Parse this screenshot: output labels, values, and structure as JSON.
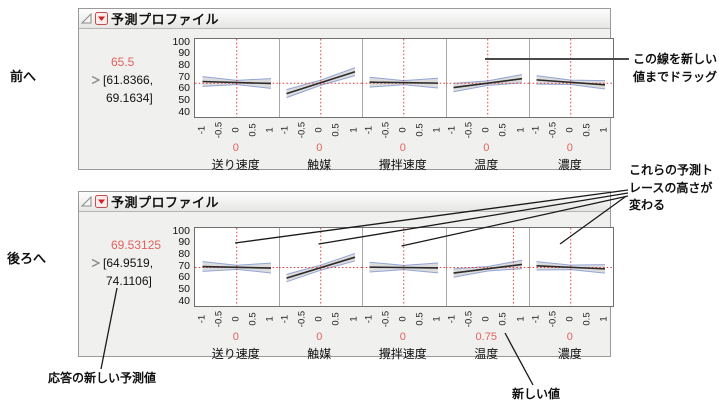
{
  "annotations": {
    "prev": "前へ",
    "next": "後ろへ",
    "drag_line1": "この線を新しい",
    "drag_line2": "値までドラッグ",
    "trace_line1": "これらの予測ト",
    "trace_line2": "レースの高さが",
    "trace_line3": "変わる",
    "new_prediction": "応答の新しい予測値",
    "new_value": "新しい値"
  },
  "colors": {
    "crosshair_red": "#e13b3b",
    "factor_value_red": "#e5615e",
    "band_fill": "#dcdcdc",
    "band_edge": "#93a5d6",
    "trace": "#2b2b2b",
    "panel_bg": "#f0f0ee"
  },
  "chart_data": [
    {
      "type": "line",
      "panel_title": "予測プロファイル",
      "response": {
        "value": 65.5,
        "value_label": "65.5",
        "ci_low": 61.8366,
        "ci_high": 69.1634,
        "ci_line1": "[61.8366,",
        "ci_line2": "69.1634]"
      },
      "ylim": [
        40,
        100
      ],
      "yticks": [
        "100",
        "90",
        "80",
        "70",
        "60",
        "50",
        "40"
      ],
      "xticks": [
        "-1",
        "-0.5",
        "0",
        "0.5",
        "1"
      ],
      "xtick_values": [
        -1,
        -0.5,
        0,
        0.5,
        1
      ],
      "factors": [
        {
          "name": "送り速度",
          "value": 0,
          "value_label": "0",
          "trace": [
            67.0,
            65.3
          ],
          "band_end": 4.2,
          "band_mid": 1.8
        },
        {
          "name": "触媒",
          "value": 0,
          "value_label": "0",
          "trace": [
            56.6,
            75.4
          ],
          "band_end": 3.4,
          "band_mid": 2.2
        },
        {
          "name": "攪拌速度",
          "value": 0,
          "value_label": "0",
          "trace": [
            66.4,
            65.6
          ],
          "band_end": 4.2,
          "band_mid": 1.8
        },
        {
          "name": "温度",
          "value": 0,
          "value_label": "0",
          "trace": [
            61.8,
            69.4
          ],
          "band_end": 3.6,
          "band_mid": 1.9
        },
        {
          "name": "濃度",
          "value": 0,
          "value_label": "0",
          "trace": [
            68.4,
            64.2
          ],
          "band_end": 3.6,
          "band_mid": 1.9
        }
      ]
    },
    {
      "type": "line",
      "panel_title": "予測プロファイル",
      "response": {
        "value": 69.53125,
        "value_label": "69.53125",
        "ci_low": 64.9519,
        "ci_high": 74.1106,
        "ci_line1": "[64.9519,",
        "ci_line2": "74.1106]"
      },
      "ylim": [
        40,
        100
      ],
      "yticks": [
        "100",
        "90",
        "80",
        "70",
        "60",
        "50",
        "40"
      ],
      "xticks": [
        "-1",
        "-0.5",
        "0",
        "0.5",
        "1"
      ],
      "xtick_values": [
        -1,
        -0.5,
        0,
        0.5,
        1
      ],
      "factors": [
        {
          "name": "送り速度",
          "value": 0,
          "value_label": "0",
          "trace": [
            70.4,
            69.1
          ],
          "band_end": 4.2,
          "band_mid": 1.8
        },
        {
          "name": "触媒",
          "value": 0,
          "value_label": "0",
          "trace": [
            60.5,
            78.4
          ],
          "band_end": 3.2,
          "band_mid": 2.2
        },
        {
          "name": "攪拌速度",
          "value": 0,
          "value_label": "0",
          "trace": [
            69.9,
            69.2
          ],
          "band_end": 4.2,
          "band_mid": 1.8
        },
        {
          "name": "温度",
          "value": 0.75,
          "value_label": "0.75",
          "trace": [
            64.8,
            72.2
          ],
          "band_end": 3.6,
          "band_mid": 1.9
        },
        {
          "name": "濃度",
          "value": 0,
          "value_label": "0",
          "trace": [
            71.0,
            68.4
          ],
          "band_end": 3.6,
          "band_mid": 1.9
        }
      ]
    }
  ]
}
